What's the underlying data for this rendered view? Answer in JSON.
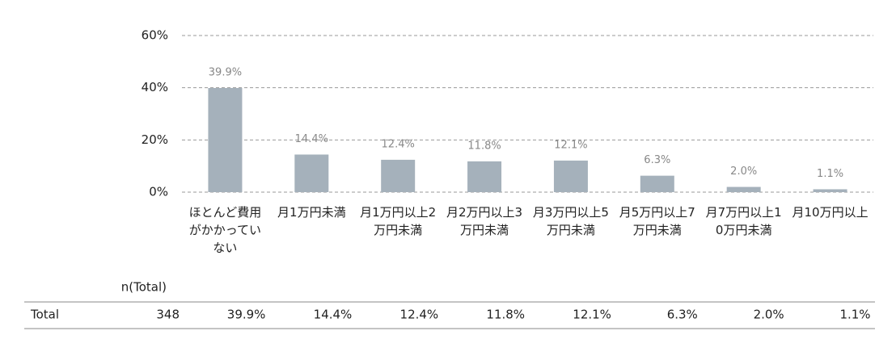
{
  "chart_data": {
    "type": "bar",
    "categories": [
      "ほとんど費用がかかっていない",
      "月1万円未満",
      "月1万円以上2万円未満",
      "月2万円以上3万円未満",
      "月3万円以上5万円未満",
      "月5万円以上7万円未満",
      "月7万円以上10万円未満",
      "月10万円以上"
    ],
    "values": [
      39.9,
      14.4,
      12.4,
      11.8,
      12.1,
      6.3,
      2.0,
      1.1
    ],
    "value_labels": [
      "39.9%",
      "14.4%",
      "12.4%",
      "11.8%",
      "12.1%",
      "6.3%",
      "2.0%",
      "1.1%"
    ],
    "color": "#a5b1bb",
    "ylim": [
      0,
      60
    ],
    "yticks": [
      {
        "value": 0,
        "label": "0%"
      },
      {
        "value": 20,
        "label": "20%"
      },
      {
        "value": 40,
        "label": "40%"
      },
      {
        "value": 60,
        "label": "60%"
      }
    ],
    "grid": true
  },
  "table": {
    "header": "n(Total)",
    "rows": [
      [
        "Total",
        "348",
        "39.9%",
        "14.4%",
        "12.4%",
        "11.8%",
        "12.1%",
        "6.3%",
        "2.0%",
        "1.1%"
      ]
    ]
  }
}
